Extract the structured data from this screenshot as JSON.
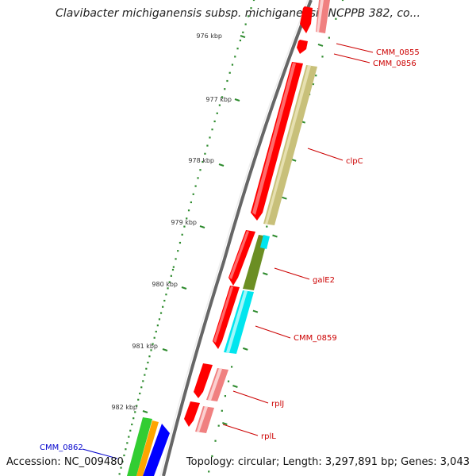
{
  "title": "Clavibacter michiganensis subsp. michiganensis NCPPB 382, co...",
  "footer": {
    "accession": "Accession: NC_009480",
    "summary": "Topology: circular; Length: 3,297,891 bp; Genes: 3,043"
  },
  "colors": {
    "backbone": "#888888",
    "tick": "#2e8b2e",
    "label_red": "#cc0000",
    "label_blue": "#0000cc",
    "cds_red": "#ff0000",
    "cds_pink": "#f08080",
    "khaki": "#c8c07a",
    "olive": "#6b8e23",
    "cyan": "#00e5ee",
    "green": "#32cd32",
    "orange": "#ffa500",
    "blue": "#0000ff"
  },
  "ticks": [
    {
      "label": "976 kbp"
    },
    {
      "label": "977 kbp"
    },
    {
      "label": "978 kbp"
    },
    {
      "label": "979 kbp"
    },
    {
      "label": "980 kbp"
    },
    {
      "label": "981 kbp"
    },
    {
      "label": "982 kbp"
    }
  ],
  "genes": [
    {
      "name": "CMM_0855"
    },
    {
      "name": "CMM_0856"
    },
    {
      "name": "clpC"
    },
    {
      "name": "galE2"
    },
    {
      "name": "CMM_0859"
    },
    {
      "name": "rplJ"
    },
    {
      "name": "rplL"
    },
    {
      "name": "CMM_0862"
    }
  ]
}
